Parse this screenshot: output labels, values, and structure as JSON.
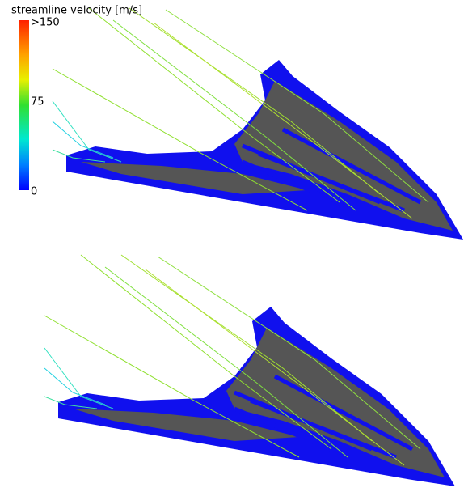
{
  "legend": {
    "title": "streamline velocity [m/s]",
    "ticks": [
      ">150",
      "75",
      "0"
    ]
  }
}
